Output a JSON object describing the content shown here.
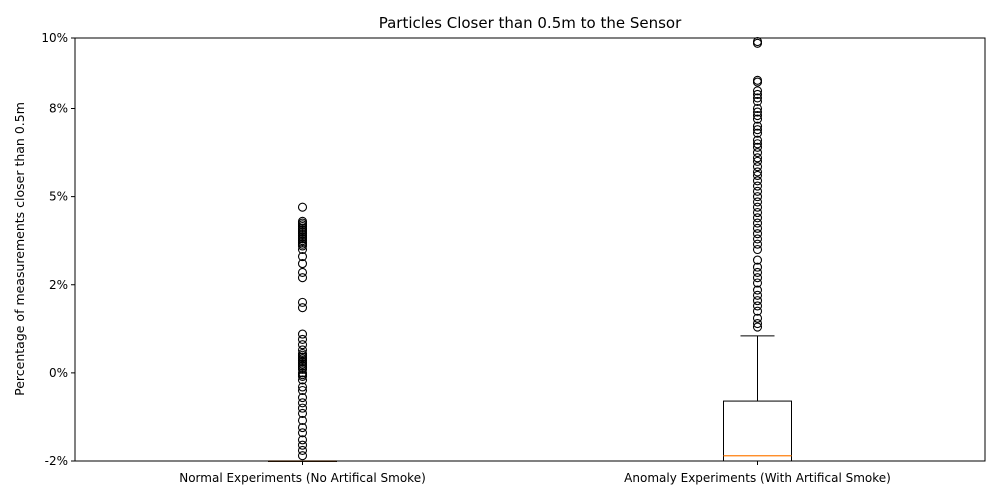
{
  "chart_data": {
    "type": "box",
    "title": "Particles Closer than 0.5m to the Sensor",
    "xlabel": "",
    "ylabel": "Percentage of measurements closer than 0.5m",
    "ylim": [
      -2,
      10
    ],
    "ytick_values": [
      -2,
      0.5,
      3,
      5.5,
      8,
      10
    ],
    "ytick_labels": [
      "-2%",
      "0%",
      "2%",
      "5%",
      "8%",
      "10%"
    ],
    "categories": [
      "Normal Experiments (No Artifical Smoke)",
      "Anomaly Experiments (With Artifical Smoke)"
    ],
    "boxes": [
      {
        "category": "Normal Experiments (No Artifical Smoke)",
        "q1": -2.0,
        "median": -2.0,
        "q3": -2.0,
        "whisker_low": -2.0,
        "whisker_high": -2.0,
        "outliers": [
          5.2,
          4.8,
          4.75,
          4.7,
          4.65,
          4.6,
          4.55,
          4.5,
          4.45,
          4.4,
          4.35,
          4.3,
          4.25,
          4.2,
          4.15,
          4.1,
          4.0,
          3.8,
          3.6,
          3.35,
          3.2,
          2.5,
          2.35,
          1.6,
          1.45,
          1.3,
          1.15,
          1.05,
          1.0,
          0.95,
          0.9,
          0.85,
          0.8,
          0.75,
          0.7,
          0.65,
          0.6,
          0.5,
          0.45,
          0.4,
          0.3,
          0.1,
          0.0,
          -0.2,
          -0.35,
          -0.5,
          -0.65,
          -0.85,
          -1.05,
          -1.2,
          -1.4,
          -1.55,
          -1.7,
          -1.85
        ]
      },
      {
        "category": "Anomaly Experiments (With Artifical Smoke)",
        "q1": -2.0,
        "median": -1.85,
        "q3": -0.3,
        "whisker_low": -2.0,
        "whisker_high": 1.55,
        "outliers": [
          9.9,
          9.85,
          8.8,
          8.75,
          8.5,
          8.4,
          8.3,
          8.2,
          8.0,
          7.9,
          7.8,
          7.7,
          7.5,
          7.4,
          7.3,
          7.1,
          7.0,
          6.9,
          6.75,
          6.6,
          6.5,
          6.35,
          6.2,
          6.1,
          5.95,
          5.8,
          5.65,
          5.5,
          5.35,
          5.2,
          5.05,
          4.9,
          4.75,
          4.6,
          4.45,
          4.3,
          4.15,
          4.0,
          3.7,
          3.5,
          3.35,
          3.2,
          3.05,
          2.85,
          2.7,
          2.55,
          2.4,
          2.25,
          2.05,
          1.9,
          1.8
        ]
      }
    ],
    "colors": {
      "box": "#000000",
      "median": "#ff7f0e",
      "outlier": "#000000"
    },
    "grid": false,
    "legend": "none"
  }
}
